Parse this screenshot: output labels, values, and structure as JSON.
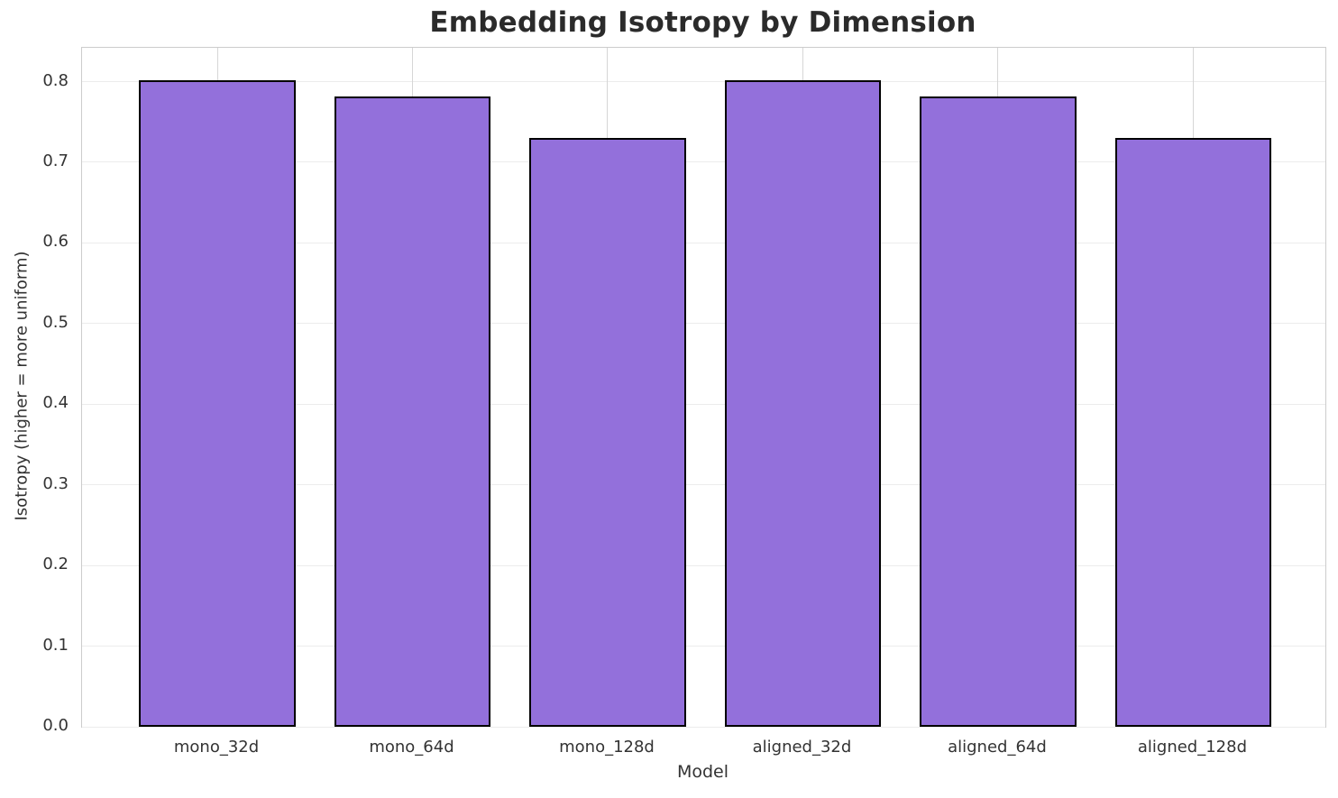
{
  "chart_data": {
    "type": "bar",
    "title": "Embedding Isotropy by Dimension",
    "xlabel": "Model",
    "ylabel": "Isotropy (higher = more uniform)",
    "categories": [
      "mono_32d",
      "mono_64d",
      "mono_128d",
      "aligned_32d",
      "aligned_64d",
      "aligned_128d"
    ],
    "values": [
      0.802,
      0.782,
      0.73,
      0.802,
      0.782,
      0.73
    ],
    "ytick_labels": [
      "0.0",
      "0.1",
      "0.2",
      "0.3",
      "0.4",
      "0.5",
      "0.6",
      "0.7",
      "0.8"
    ],
    "yticks": [
      0.0,
      0.1,
      0.2,
      0.3,
      0.4,
      0.5,
      0.6,
      0.7,
      0.8
    ],
    "ylim": [
      0,
      0.842
    ],
    "xlim": [
      -0.693,
      5.677
    ],
    "bar_width_units": 0.8,
    "grid": true,
    "legend_position": "none",
    "colors": {
      "bar_fill": "#9370DB",
      "bar_edge": "#000000",
      "h_grid": "#ececec",
      "v_grid": "#d6d6d6",
      "spine": "#cccccc",
      "title_text": "#2b2b2b",
      "tick_text": "#333333",
      "axis_label_text": "#333333"
    }
  }
}
